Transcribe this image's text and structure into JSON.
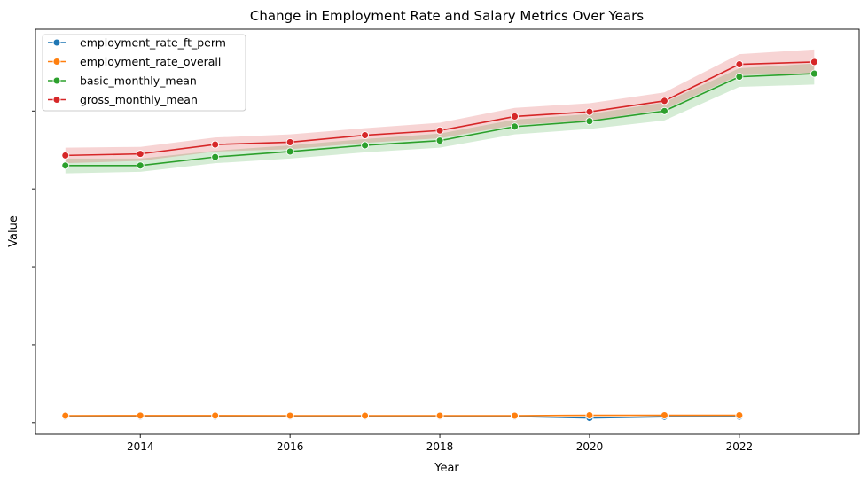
{
  "chart_data": {
    "type": "line",
    "title": "Change in Employment Rate and Salary Metrics Over Years",
    "xlabel": "Year",
    "ylabel": "Value",
    "xlim": [
      2012.6,
      2023.6
    ],
    "ylim": [
      -150,
      5050
    ],
    "x_ticks": [
      2014,
      2016,
      2018,
      2020,
      2022
    ],
    "y_ticks": [
      0,
      1000,
      2000,
      3000,
      4000
    ],
    "y_tick_labels_shown": false,
    "grid": false,
    "legend_position": "top-left",
    "series": [
      {
        "name": "employment_rate_ft_perm",
        "color": "#1f77b4",
        "x": [
          2013,
          2014,
          2015,
          2016,
          2017,
          2018,
          2019,
          2020,
          2021,
          2022
        ],
        "y": [
          78,
          79,
          79,
          79,
          79,
          79,
          79,
          60,
          76,
          77
        ]
      },
      {
        "name": "employment_rate_overall",
        "color": "#ff7f0e",
        "x": [
          2013,
          2014,
          2015,
          2016,
          2017,
          2018,
          2019,
          2020,
          2021,
          2022
        ],
        "y": [
          89,
          90,
          90,
          89,
          89,
          89,
          89,
          94,
          94,
          94
        ]
      },
      {
        "name": "basic_monthly_mean",
        "color": "#2ca02c",
        "x": [
          2013,
          2014,
          2015,
          2016,
          2017,
          2018,
          2019,
          2020,
          2021,
          2022,
          2023
        ],
        "y": [
          3300,
          3300,
          3410,
          3480,
          3560,
          3620,
          3800,
          3870,
          4000,
          4440,
          4480
        ],
        "band_low": [
          3200,
          3220,
          3330,
          3390,
          3470,
          3530,
          3700,
          3770,
          3880,
          4310,
          4340
        ],
        "band_high": [
          3390,
          3390,
          3490,
          3560,
          3640,
          3710,
          3890,
          3960,
          4110,
          4550,
          4610
        ]
      },
      {
        "name": "gross_monthly_mean",
        "color": "#d62728",
        "x": [
          2013,
          2014,
          2015,
          2016,
          2017,
          2018,
          2019,
          2020,
          2021,
          2022,
          2023
        ],
        "y": [
          3430,
          3450,
          3570,
          3600,
          3690,
          3750,
          3930,
          3990,
          4130,
          4600,
          4630
        ],
        "band_low": [
          3330,
          3360,
          3480,
          3510,
          3590,
          3650,
          3820,
          3880,
          4020,
          4460,
          4490
        ],
        "band_high": [
          3530,
          3540,
          3660,
          3700,
          3780,
          3850,
          4040,
          4100,
          4240,
          4730,
          4790
        ]
      }
    ]
  }
}
